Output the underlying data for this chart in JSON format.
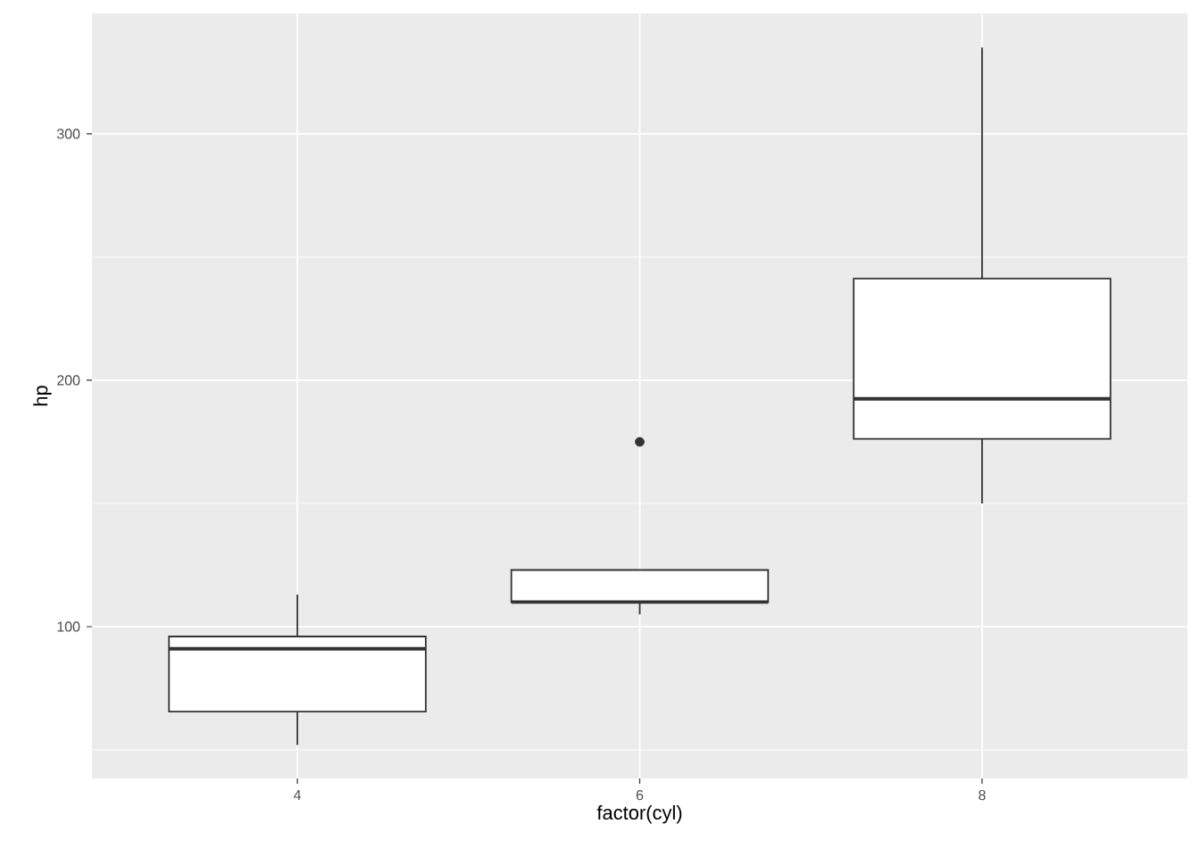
{
  "chart_data": {
    "type": "box",
    "xlabel": "factor(cyl)",
    "ylabel": "hp",
    "categories": [
      "4",
      "6",
      "8"
    ],
    "color": "#333333",
    "ylim": [
      38.4,
      348.9
    ],
    "yticks": [
      100,
      200,
      300
    ],
    "grid": true,
    "boxes": [
      {
        "low": 52,
        "q1": 65.5,
        "median": 91,
        "q3": 96,
        "high": 113
      },
      {
        "low": 105,
        "q1": 110,
        "median": 110,
        "q3": 123,
        "high": 123,
        "outliers": [
          175
        ]
      },
      {
        "low": 150,
        "q1": 176.25,
        "median": 192.5,
        "q3": 241.25,
        "high": 335
      }
    ]
  }
}
